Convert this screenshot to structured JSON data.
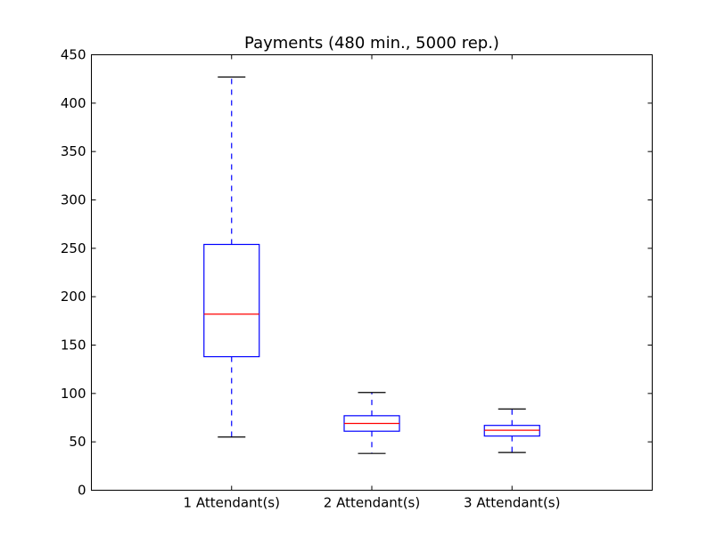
{
  "chart_data": {
    "type": "boxplot",
    "title": "Payments (480 min., 5000 rep.)",
    "xlabel": "",
    "ylabel": "",
    "ylim": [
      0,
      450
    ],
    "yticks": [
      0,
      50,
      100,
      150,
      200,
      250,
      300,
      350,
      400,
      450
    ],
    "grid": false,
    "categories": [
      "1 Attendant(s)",
      "2 Attendant(s)",
      "3 Attendant(s)"
    ],
    "boxes": [
      {
        "whisker_low": 55,
        "q1": 138,
        "median": 182,
        "q3": 254,
        "whisker_high": 427
      },
      {
        "whisker_low": 38,
        "q1": 61,
        "median": 69,
        "q3": 77,
        "whisker_high": 101
      },
      {
        "whisker_low": 39,
        "q1": 56,
        "median": 62,
        "q3": 67,
        "whisker_high": 84
      }
    ],
    "colors": {
      "box": "#0000ff",
      "median": "#ff0000",
      "cap": "#000000",
      "axes": "#000000"
    }
  }
}
